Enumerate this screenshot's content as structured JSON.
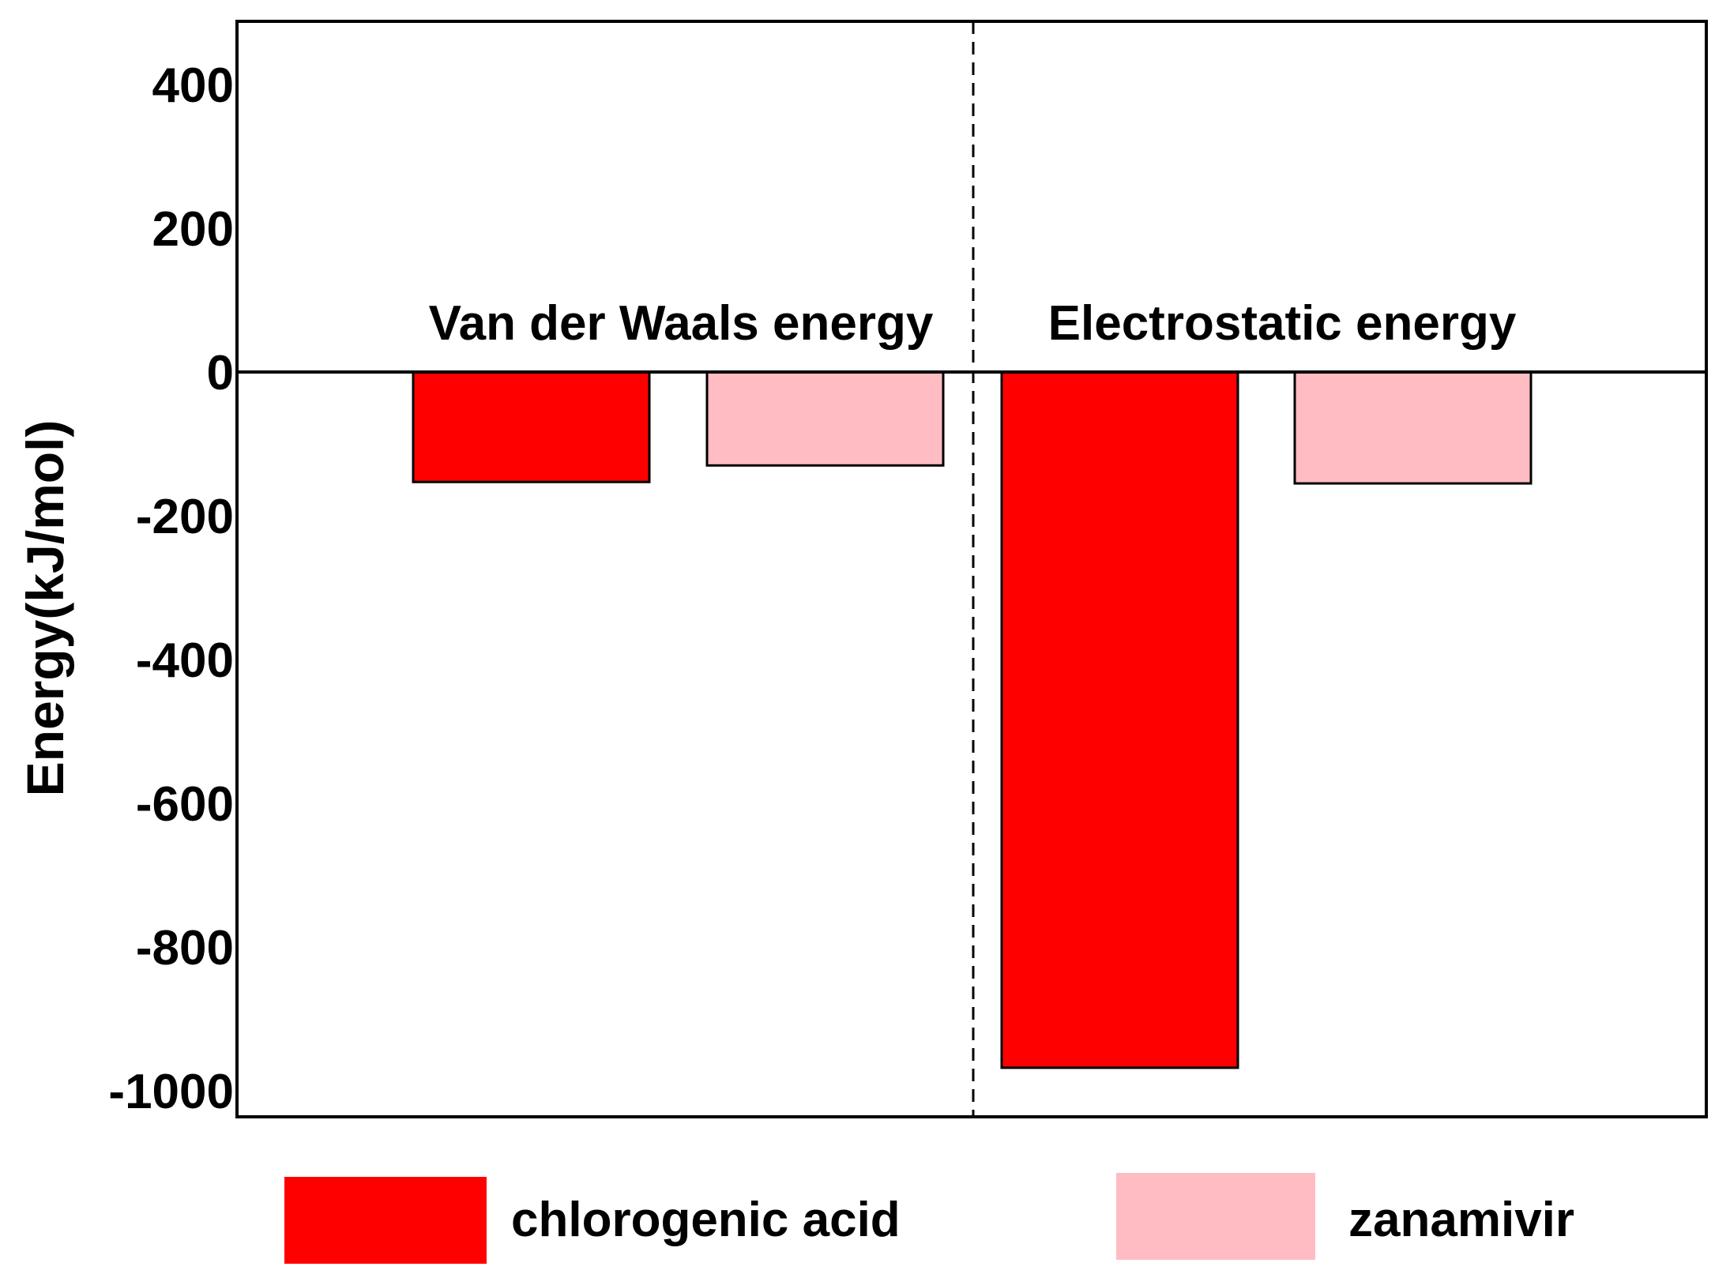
{
  "chart_data": {
    "type": "bar",
    "ylabel": "Energy(kJ/mol)",
    "xlabel": "",
    "ylim": [
      -1050,
      500
    ],
    "yticks": [
      400,
      200,
      0,
      -200,
      -400,
      -600,
      -800,
      -1000
    ],
    "grid": false,
    "legend_position": "bottom",
    "categories": [
      "Van der Waals energy",
      "Electrostatic energy"
    ],
    "series": [
      {
        "name": "chlorogenic acid",
        "color": "#ff0000",
        "values": [
          -153,
          -968
        ]
      },
      {
        "name": "zanamivir",
        "color": "#ffbcc3",
        "values": [
          -130,
          -155
        ]
      }
    ]
  }
}
